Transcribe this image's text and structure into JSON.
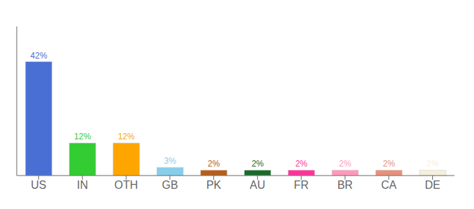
{
  "chart_data": {
    "type": "bar",
    "categories": [
      "US",
      "IN",
      "OTH",
      "GB",
      "PK",
      "AU",
      "FR",
      "BR",
      "CA",
      "DE"
    ],
    "values": [
      42,
      12,
      12,
      3,
      2,
      2,
      2,
      2,
      2,
      2
    ],
    "value_labels": [
      "42%",
      "12%",
      "12%",
      "3%",
      "2%",
      "2%",
      "2%",
      "2%",
      "2%",
      "2%"
    ],
    "data_labels": true,
    "colors": [
      "#4A6FD4",
      "#33CC33",
      "#FFA500",
      "#87CEEB",
      "#B85C1A",
      "#1A6B2A",
      "#FF3399",
      "#FF99BB",
      "#E8907A",
      "#F5F0DC"
    ],
    "ylim": [
      0,
      55
    ],
    "tick_labels": "x",
    "grid": false
  }
}
